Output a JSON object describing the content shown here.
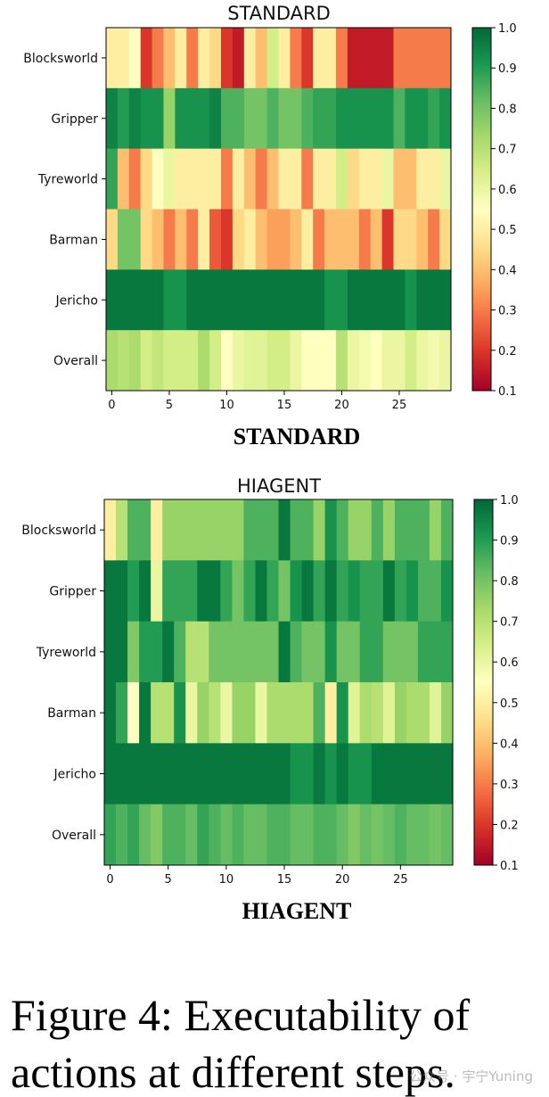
{
  "chart_data": [
    {
      "type": "heatmap",
      "title": "STANDARD",
      "sublabel": "STANDARD",
      "rows": [
        "Blocksworld",
        "Gripper",
        "Tyreworld",
        "Barman",
        "Jericho",
        "Overall"
      ],
      "x": [
        0,
        1,
        2,
        3,
        4,
        5,
        6,
        7,
        8,
        9,
        10,
        11,
        12,
        13,
        14,
        15,
        16,
        17,
        18,
        19,
        20,
        21,
        22,
        23,
        24,
        25,
        26,
        27,
        28,
        29
      ],
      "xticks": [
        0,
        5,
        10,
        15,
        20,
        25
      ],
      "colorbar": {
        "min": 0.1,
        "max": 1.0,
        "ticks": [
          "0.1",
          "0.2",
          "0.3",
          "0.4",
          "0.5",
          "0.6",
          "0.7",
          "0.8",
          "0.9",
          "1.0"
        ],
        "colormap": "RdYlGn"
      },
      "values": [
        [
          0.5,
          0.5,
          0.55,
          0.2,
          0.3,
          0.4,
          0.5,
          0.3,
          0.5,
          0.45,
          0.2,
          0.15,
          0.5,
          0.4,
          0.65,
          0.5,
          0.3,
          0.2,
          0.5,
          0.5,
          0.3,
          0.15,
          0.15,
          0.15,
          0.15,
          0.3,
          0.3,
          0.3,
          0.3,
          0.3
        ],
        [
          0.95,
          0.9,
          0.95,
          0.92,
          0.92,
          0.75,
          0.92,
          0.92,
          0.92,
          0.95,
          0.85,
          0.85,
          0.8,
          0.8,
          0.85,
          0.8,
          0.8,
          0.85,
          0.88,
          0.88,
          0.92,
          0.92,
          0.92,
          0.92,
          0.92,
          0.85,
          0.92,
          0.92,
          0.88,
          0.92
        ],
        [
          0.88,
          0.4,
          0.3,
          0.45,
          0.55,
          0.6,
          0.5,
          0.5,
          0.5,
          0.5,
          0.3,
          0.5,
          0.4,
          0.3,
          0.4,
          0.5,
          0.5,
          0.3,
          0.5,
          0.5,
          0.65,
          0.45,
          0.5,
          0.5,
          0.6,
          0.4,
          0.4,
          0.5,
          0.5,
          0.6
        ],
        [
          0.45,
          0.8,
          0.8,
          0.45,
          0.4,
          0.3,
          0.4,
          0.3,
          0.5,
          0.25,
          0.2,
          0.45,
          0.5,
          0.4,
          0.35,
          0.35,
          0.4,
          0.5,
          0.3,
          0.4,
          0.4,
          0.4,
          0.3,
          0.4,
          0.2,
          0.45,
          0.45,
          0.4,
          0.3,
          0.45
        ],
        [
          0.97,
          0.97,
          0.97,
          0.97,
          0.97,
          0.92,
          0.92,
          0.97,
          0.97,
          0.97,
          0.97,
          0.97,
          0.97,
          0.97,
          0.97,
          0.97,
          0.97,
          0.97,
          0.97,
          0.92,
          0.92,
          0.97,
          0.97,
          0.97,
          0.97,
          0.97,
          0.92,
          0.97,
          0.97,
          0.97
        ],
        [
          0.72,
          0.7,
          0.72,
          0.65,
          0.68,
          0.65,
          0.65,
          0.65,
          0.72,
          0.65,
          0.55,
          0.6,
          0.62,
          0.62,
          0.65,
          0.65,
          0.6,
          0.55,
          0.55,
          0.55,
          0.7,
          0.6,
          0.58,
          0.55,
          0.6,
          0.6,
          0.65,
          0.6,
          0.58,
          0.6
        ]
      ]
    },
    {
      "type": "heatmap",
      "title": "HIAGENT",
      "sublabel": "HIAGENT",
      "rows": [
        "Blocksworld",
        "Gripper",
        "Tyreworld",
        "Barman",
        "Jericho",
        "Overall"
      ],
      "x": [
        0,
        1,
        2,
        3,
        4,
        5,
        6,
        7,
        8,
        9,
        10,
        11,
        12,
        13,
        14,
        15,
        16,
        17,
        18,
        19,
        20,
        21,
        22,
        23,
        24,
        25,
        26,
        27,
        28,
        29
      ],
      "xticks": [
        0,
        5,
        10,
        15,
        20,
        25
      ],
      "colorbar": {
        "min": 0.1,
        "max": 1.0,
        "ticks": [
          "0.1",
          "0.2",
          "0.3",
          "0.4",
          "0.5",
          "0.6",
          "0.7",
          "0.8",
          "0.9",
          "1.0"
        ],
        "colormap": "RdYlGn"
      },
      "values": [
        [
          0.5,
          0.7,
          0.85,
          0.85,
          0.5,
          0.75,
          0.75,
          0.75,
          0.75,
          0.75,
          0.75,
          0.75,
          0.85,
          0.85,
          0.85,
          0.97,
          0.85,
          0.85,
          0.75,
          0.92,
          0.85,
          0.75,
          0.75,
          0.85,
          0.75,
          0.85,
          0.85,
          0.85,
          0.75,
          0.85
        ],
        [
          0.97,
          0.97,
          0.9,
          0.97,
          0.6,
          0.88,
          0.88,
          0.88,
          0.97,
          0.97,
          0.88,
          0.8,
          0.88,
          0.97,
          0.88,
          0.8,
          0.92,
          0.97,
          0.88,
          0.97,
          0.88,
          0.92,
          0.88,
          0.88,
          0.97,
          0.88,
          0.92,
          0.85,
          0.85,
          0.92
        ],
        [
          0.97,
          0.97,
          0.78,
          0.9,
          0.9,
          0.97,
          0.85,
          0.7,
          0.7,
          0.8,
          0.8,
          0.8,
          0.8,
          0.8,
          0.8,
          0.97,
          0.85,
          0.8,
          0.8,
          0.92,
          0.8,
          0.8,
          0.88,
          0.88,
          0.8,
          0.8,
          0.8,
          0.88,
          0.88,
          0.88
        ],
        [
          0.97,
          0.88,
          0.55,
          0.97,
          0.7,
          0.7,
          0.92,
          0.6,
          0.75,
          0.7,
          0.6,
          0.75,
          0.75,
          0.6,
          0.72,
          0.72,
          0.72,
          0.72,
          0.85,
          0.5,
          0.92,
          0.62,
          0.72,
          0.7,
          0.62,
          0.75,
          0.72,
          0.72,
          0.62,
          0.75
        ],
        [
          0.97,
          0.97,
          0.97,
          0.97,
          0.97,
          0.97,
          0.97,
          0.97,
          0.97,
          0.97,
          0.97,
          0.97,
          0.97,
          0.97,
          0.97,
          0.97,
          0.92,
          0.92,
          0.97,
          0.92,
          0.97,
          0.92,
          0.92,
          0.97,
          0.97,
          0.97,
          0.97,
          0.97,
          0.97,
          0.97
        ],
        [
          0.88,
          0.85,
          0.88,
          0.82,
          0.78,
          0.85,
          0.85,
          0.82,
          0.88,
          0.85,
          0.82,
          0.85,
          0.82,
          0.82,
          0.85,
          0.85,
          0.82,
          0.82,
          0.85,
          0.85,
          0.82,
          0.78,
          0.82,
          0.8,
          0.82,
          0.85,
          0.82,
          0.82,
          0.8,
          0.82
        ]
      ]
    }
  ],
  "caption": {
    "line1": "Figure 4: Executability of",
    "line2": "actions at different steps."
  },
  "watermark": "公众号 · 宇宁Yuning"
}
